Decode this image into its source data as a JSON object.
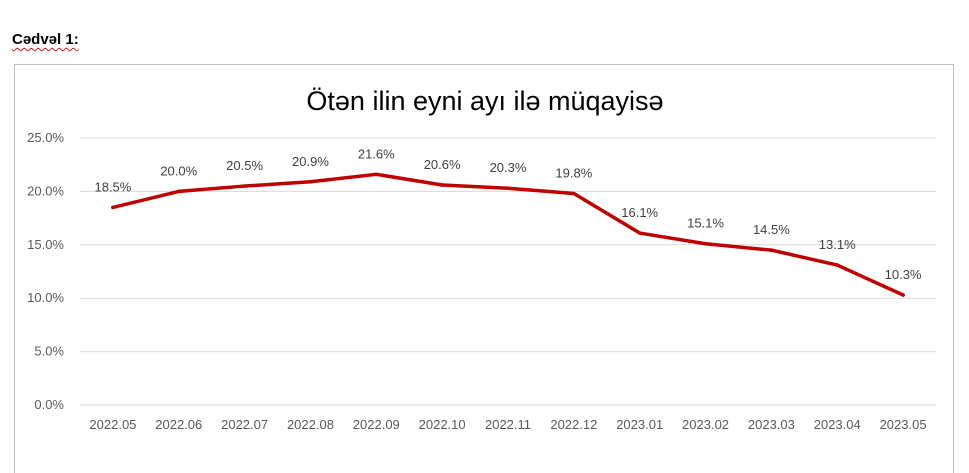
{
  "caption": "Cədvəl 1:",
  "chart_data": {
    "type": "line",
    "title": "Ötən ilin eyni ayı ilə müqayisə",
    "xlabel": "",
    "ylabel": "",
    "categories": [
      "2022.05",
      "2022.06",
      "2022.07",
      "2022.08",
      "2022.09",
      "2022.10",
      "2022.11",
      "2022.12",
      "2023.01",
      "2023.02",
      "2023.03",
      "2023.04",
      "2023.05"
    ],
    "series": [
      {
        "values": [
          18.5,
          20.0,
          20.5,
          20.9,
          21.6,
          20.6,
          20.3,
          19.8,
          16.1,
          15.1,
          14.5,
          13.1,
          10.3
        ],
        "labels": [
          "18.5%",
          "20.0%",
          "20.5%",
          "20.9%",
          "21.6%",
          "20.6%",
          "20.3%",
          "19.8%",
          "16.1%",
          "15.1%",
          "14.5%",
          "13.1%",
          "10.3%"
        ],
        "color": "#c00000"
      }
    ],
    "yticks": [
      0,
      5,
      10,
      15,
      20,
      25
    ],
    "ytick_labels": [
      "0.0%",
      "5.0%",
      "10.0%",
      "15.0%",
      "20.0%",
      "25.0%"
    ],
    "ylim": [
      0,
      25
    ],
    "grid": true,
    "legend": "none",
    "gridline_color": "#d9d9d9"
  }
}
